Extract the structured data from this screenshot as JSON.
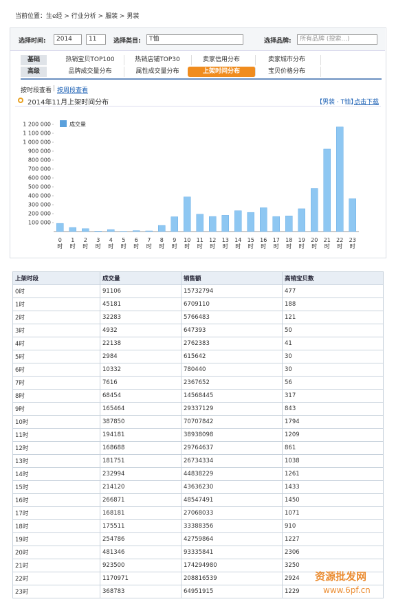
{
  "breadcrumb": "当前位置：生e经 > 行业分析 > 服装 > 男装",
  "filters": {
    "time_label": "选择时间:",
    "year": "2014",
    "month": "11",
    "category_label": "选择类目:",
    "category": "T恤",
    "brand_label": "选择品牌:",
    "brand_placeholder": "所有品牌 (搜索...)"
  },
  "tabs": {
    "basic_label": "基础",
    "basic": [
      "热销宝贝TOP100",
      "热销店铺TOP30",
      "卖家信用分布",
      "卖家城市分布"
    ],
    "advanced_label": "高级",
    "advanced": [
      "品牌成交量分布",
      "属性成交量分布",
      "上架时间分布",
      "宝贝价格分布"
    ]
  },
  "view_links": [
    "按时段查看",
    "按周段查看"
  ],
  "section": {
    "title": "2014年11月上架时间分布",
    "scope": "【男装 · T恤】",
    "download": "点击下载"
  },
  "chart_data": {
    "type": "bar",
    "legend": "成交量",
    "color": "#8ec7f2",
    "categories": [
      "0时",
      "1时",
      "2时",
      "3时",
      "4时",
      "5时",
      "6时",
      "7时",
      "8时",
      "9时",
      "10时",
      "11时",
      "12时",
      "13时",
      "14时",
      "15时",
      "16时",
      "17时",
      "18时",
      "19时",
      "20时",
      "21时",
      "22时",
      "23时"
    ],
    "values": [
      91106,
      45181,
      32283,
      4932,
      22138,
      2984,
      10332,
      7616,
      68454,
      165464,
      387850,
      194181,
      168688,
      181751,
      232994,
      214120,
      266871,
      168181,
      175511,
      254786,
      481346,
      923500,
      1170971,
      368783
    ],
    "ylim": [
      0,
      1300000
    ],
    "yticks": [
      {
        "value": 100000,
        "label": "100 000"
      },
      {
        "value": 200000,
        "label": "200 000"
      },
      {
        "value": 300000,
        "label": "300 000"
      },
      {
        "value": 400000,
        "label": "400 000"
      },
      {
        "value": 500000,
        "label": "500 000"
      },
      {
        "value": 600000,
        "label": "600 000"
      },
      {
        "value": 700000,
        "label": "700 000"
      },
      {
        "value": 800000,
        "label": "800 000"
      },
      {
        "value": 900000,
        "label": "900 000"
      },
      {
        "value": 1000000,
        "label": "1 000 000"
      },
      {
        "value": 1100000,
        "label": "1 100 000"
      },
      {
        "value": 1200000,
        "label": "1 200 000"
      }
    ]
  },
  "table": {
    "header": [
      "上架时段",
      "成交量",
      "销售额",
      "高销宝贝数"
    ],
    "rows": [
      [
        "0时",
        "91106",
        "15732794",
        "477"
      ],
      [
        "1时",
        "45181",
        "6709110",
        "188"
      ],
      [
        "2时",
        "32283",
        "5766483",
        "121"
      ],
      [
        "3时",
        "4932",
        "647393",
        "50"
      ],
      [
        "4时",
        "22138",
        "2762383",
        "41"
      ],
      [
        "5时",
        "2984",
        "615642",
        "30"
      ],
      [
        "6时",
        "10332",
        "780440",
        "30"
      ],
      [
        "7时",
        "7616",
        "2367652",
        "56"
      ],
      [
        "8时",
        "68454",
        "14568445",
        "317"
      ],
      [
        "9时",
        "165464",
        "29337129",
        "843"
      ],
      [
        "10时",
        "387850",
        "70707842",
        "1794"
      ],
      [
        "11时",
        "194181",
        "38938098",
        "1209"
      ],
      [
        "12时",
        "168688",
        "29764637",
        "861"
      ],
      [
        "13时",
        "181751",
        "26734334",
        "1038"
      ],
      [
        "14时",
        "232994",
        "44838229",
        "1261"
      ],
      [
        "15时",
        "214120",
        "43636230",
        "1433"
      ],
      [
        "16时",
        "266871",
        "48547491",
        "1450"
      ],
      [
        "17时",
        "168181",
        "27068033",
        "1071"
      ],
      [
        "18时",
        "175511",
        "33388356",
        "910"
      ],
      [
        "19时",
        "254786",
        "42759864",
        "1227"
      ],
      [
        "20时",
        "481346",
        "93335841",
        "2306"
      ],
      [
        "21时",
        "923500",
        "174294980",
        "3250"
      ],
      [
        "22时",
        "1170971",
        "208816539",
        "2924"
      ],
      [
        "23时",
        "368783",
        "64951915",
        "1229"
      ]
    ]
  },
  "watermark": [
    "资源批发网",
    "www.6pf.cn"
  ]
}
